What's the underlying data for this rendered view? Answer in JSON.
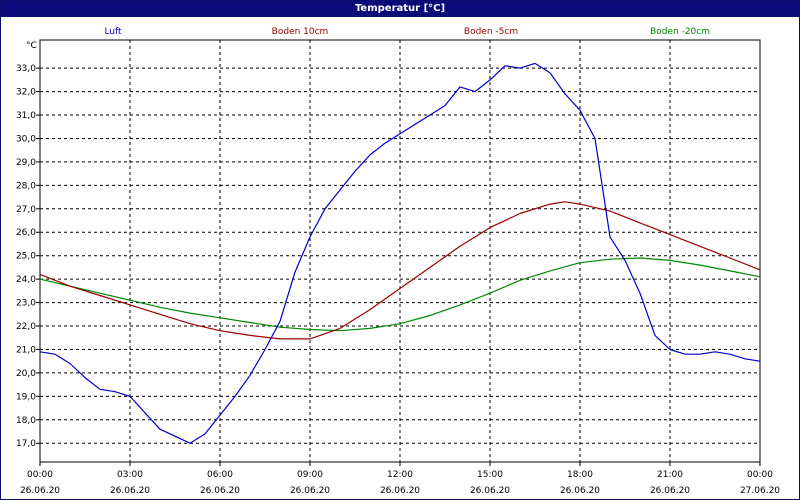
{
  "chart_data": {
    "type": "line",
    "title": "Temperatur [°C]",
    "ylabel": "°C",
    "xlabel": "",
    "ylim": [
      16.2,
      34.2
    ],
    "xlim_hours": [
      0,
      24
    ],
    "grid": true,
    "legend_placement": "top",
    "y_ticks": [
      "17,0",
      "18,0",
      "19,0",
      "20,0",
      "21,0",
      "22,0",
      "23,0",
      "24,0",
      "25,0",
      "26,0",
      "27,0",
      "28,0",
      "29,0",
      "30,0",
      "31,0",
      "32,0",
      "33,0"
    ],
    "x_ticks": [
      {
        "time": "00:00",
        "date": "26.06.20"
      },
      {
        "time": "03:00",
        "date": "26.06.20"
      },
      {
        "time": "06:00",
        "date": "26.06.20"
      },
      {
        "time": "09:00",
        "date": "26.06.20"
      },
      {
        "time": "12:00",
        "date": "26.06.20"
      },
      {
        "time": "15:00",
        "date": "26.06.20"
      },
      {
        "time": "18:00",
        "date": "26.06.20"
      },
      {
        "time": "21:00",
        "date": "26.06.20"
      },
      {
        "time": "00:00",
        "date": "27.06.20"
      }
    ],
    "series": [
      {
        "name": "Luft",
        "color": "#0000cc",
        "points": [
          [
            0,
            20.9
          ],
          [
            0.5,
            20.8
          ],
          [
            1,
            20.4
          ],
          [
            1.5,
            19.8
          ],
          [
            2,
            19.3
          ],
          [
            2.5,
            19.2
          ],
          [
            3,
            19.0
          ],
          [
            3.5,
            18.3
          ],
          [
            4,
            17.6
          ],
          [
            4.5,
            17.3
          ],
          [
            5,
            17.0
          ],
          [
            5.5,
            17.4
          ],
          [
            6,
            18.2
          ],
          [
            6.5,
            19.0
          ],
          [
            7,
            19.9
          ],
          [
            7.5,
            21.0
          ],
          [
            8,
            22.2
          ],
          [
            8.5,
            24.3
          ],
          [
            9,
            25.8
          ],
          [
            9.5,
            27.0
          ],
          [
            10,
            27.8
          ],
          [
            10.5,
            28.6
          ],
          [
            11,
            29.3
          ],
          [
            11.5,
            29.8
          ],
          [
            12,
            30.2
          ],
          [
            12.5,
            30.6
          ],
          [
            13,
            31.0
          ],
          [
            13.5,
            31.4
          ],
          [
            14,
            32.2
          ],
          [
            14.5,
            32.0
          ],
          [
            15,
            32.5
          ],
          [
            15.5,
            33.1
          ],
          [
            16,
            33.0
          ],
          [
            16.5,
            33.2
          ],
          [
            17,
            32.8
          ],
          [
            17.5,
            31.9
          ],
          [
            18,
            31.2
          ],
          [
            18.5,
            30.0
          ],
          [
            19,
            25.8
          ],
          [
            19.5,
            24.8
          ],
          [
            20,
            23.4
          ],
          [
            20.5,
            21.6
          ],
          [
            21,
            21.0
          ],
          [
            21.5,
            20.8
          ],
          [
            22,
            20.8
          ],
          [
            22.5,
            20.9
          ],
          [
            23,
            20.8
          ],
          [
            23.5,
            20.6
          ],
          [
            24,
            20.5
          ]
        ]
      },
      {
        "name": "Boden 10cm",
        "color": "#990000",
        "points": [
          [
            0,
            24.2
          ],
          [
            1,
            23.7
          ],
          [
            2,
            23.3
          ],
          [
            3,
            22.9
          ],
          [
            4,
            22.5
          ],
          [
            5,
            22.1
          ],
          [
            6,
            21.8
          ],
          [
            7,
            21.6
          ],
          [
            8,
            21.45
          ],
          [
            9,
            21.45
          ],
          [
            10,
            21.9
          ],
          [
            11,
            22.7
          ],
          [
            12,
            23.6
          ],
          [
            13,
            24.5
          ],
          [
            14,
            25.4
          ],
          [
            15,
            26.2
          ],
          [
            16,
            26.8
          ],
          [
            17,
            27.2
          ],
          [
            17.5,
            27.3
          ],
          [
            18,
            27.2
          ],
          [
            19,
            26.9
          ],
          [
            20,
            26.4
          ],
          [
            21,
            25.9
          ],
          [
            22,
            25.4
          ],
          [
            23,
            24.9
          ],
          [
            24,
            24.4
          ]
        ]
      },
      {
        "name": "Boden -5cm",
        "color": "#990000",
        "points": []
      },
      {
        "name": "Boden -20cm",
        "color": "#008800",
        "points": [
          [
            0,
            24.0
          ],
          [
            1,
            23.7
          ],
          [
            2,
            23.4
          ],
          [
            3,
            23.1
          ],
          [
            4,
            22.8
          ],
          [
            5,
            22.55
          ],
          [
            6,
            22.35
          ],
          [
            7,
            22.15
          ],
          [
            8,
            21.95
          ],
          [
            9,
            21.85
          ],
          [
            10,
            21.8
          ],
          [
            11,
            21.9
          ],
          [
            12,
            22.1
          ],
          [
            13,
            22.45
          ],
          [
            14,
            22.9
          ],
          [
            15,
            23.4
          ],
          [
            16,
            23.95
          ],
          [
            17,
            24.35
          ],
          [
            18,
            24.7
          ],
          [
            19,
            24.85
          ],
          [
            20,
            24.9
          ],
          [
            21,
            24.8
          ],
          [
            22,
            24.6
          ],
          [
            23,
            24.35
          ],
          [
            24,
            24.1
          ]
        ]
      }
    ]
  },
  "legend": {
    "luft": "Luft",
    "boden10": "Boden 10cm",
    "boden5": "Boden -5cm",
    "boden20": "Boden -20cm"
  },
  "colors": {
    "frame": "#0a0a6a",
    "titlebar": "#0a0a78",
    "luft": "#0000cc",
    "boden10": "#990000",
    "boden5": "#990000",
    "boden20": "#008800"
  }
}
